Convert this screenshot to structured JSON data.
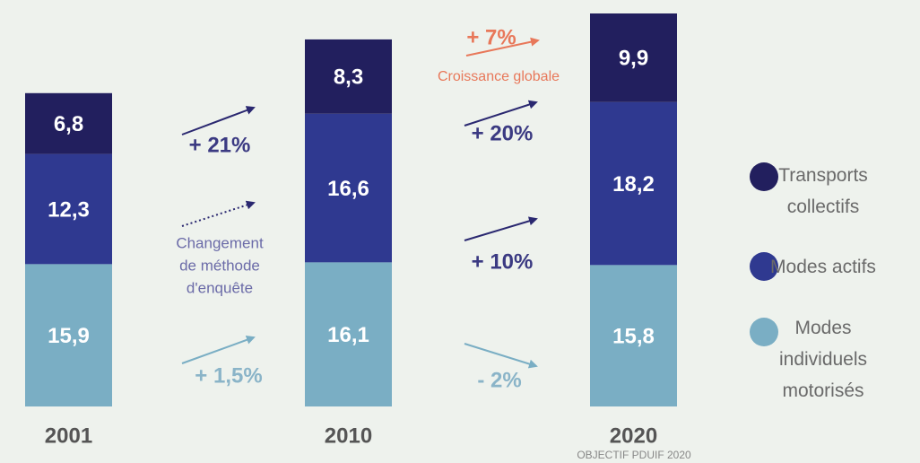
{
  "chart_data": {
    "type": "stacked_bar",
    "categories": [
      "2001",
      "2010",
      "2020"
    ],
    "series": [
      {
        "name": "Modes individuels motorisés",
        "color": "#7aaec4",
        "values": [
          15.9,
          16.1,
          15.8
        ],
        "value_labels": [
          "15,9",
          "16,1",
          "15,8"
        ]
      },
      {
        "name": "Modes actifs",
        "color": "#2f3990",
        "values": [
          12.3,
          16.6,
          18.2
        ],
        "value_labels": [
          "12,3",
          "16,6",
          "18,2"
        ]
      },
      {
        "name": "Transports collectifs",
        "color": "#221f5e",
        "values": [
          6.8,
          8.3,
          9.9
        ],
        "value_labels": [
          "6,8",
          "8,3",
          "9,9"
        ]
      }
    ],
    "annotations": [
      {
        "text": "+ 21%",
        "color": "#3b3a82"
      },
      {
        "lines": [
          "Changement",
          "de méthode",
          "d'enquête"
        ],
        "color": "#6b6ba8"
      },
      {
        "text": "+ 1,5%",
        "color": "#8ab4c8"
      },
      {
        "text": "+ 7%",
        "color": "#e8785a"
      },
      {
        "text": "Croissance globale",
        "color": "#e8785a"
      },
      {
        "text": "+ 20%",
        "color": "#3b3a82"
      },
      {
        "text": "+ 10%",
        "color": "#3b3a82"
      },
      {
        "text": "- 2%",
        "color": "#8ab4c8"
      }
    ],
    "footnote": "OBJECTIF PDUIF 2020"
  }
}
